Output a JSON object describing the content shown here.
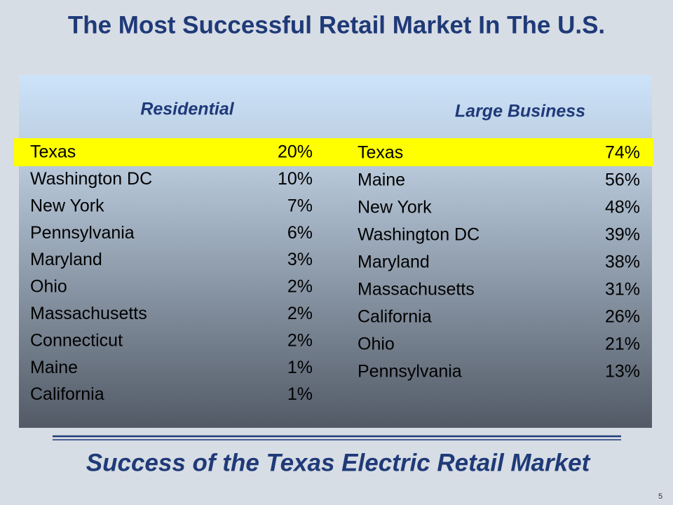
{
  "header": {
    "title": "The Most Successful Retail Market In The U.S."
  },
  "tables": [
    {
      "heading": "Residential",
      "rows": [
        [
          "Texas",
          "20%"
        ],
        [
          "Washington DC",
          "10%"
        ],
        [
          "New York",
          "7%"
        ],
        [
          "Pennsylvania",
          "6%"
        ],
        [
          "Maryland",
          "3%"
        ],
        [
          "Ohio",
          "2%"
        ],
        [
          "Massachusetts",
          "2%"
        ],
        [
          "Connecticut",
          "2%"
        ],
        [
          "Maine",
          "1%"
        ],
        [
          "California",
          "1%"
        ]
      ]
    },
    {
      "heading": "Large Business",
      "rows": [
        [
          "Texas",
          "74%"
        ],
        [
          "Maine",
          "56%"
        ],
        [
          "New York",
          "48%"
        ],
        [
          "Washington DC",
          "39%"
        ],
        [
          "Maryland",
          "38%"
        ],
        [
          "Massachusetts",
          "31%"
        ],
        [
          "California",
          "26%"
        ],
        [
          "Ohio",
          "21%"
        ],
        [
          "Pennsylvania",
          "13%"
        ]
      ]
    }
  ],
  "footer": {
    "caption": "Success of the Texas Electric Retail Market",
    "page_number": "5"
  }
}
